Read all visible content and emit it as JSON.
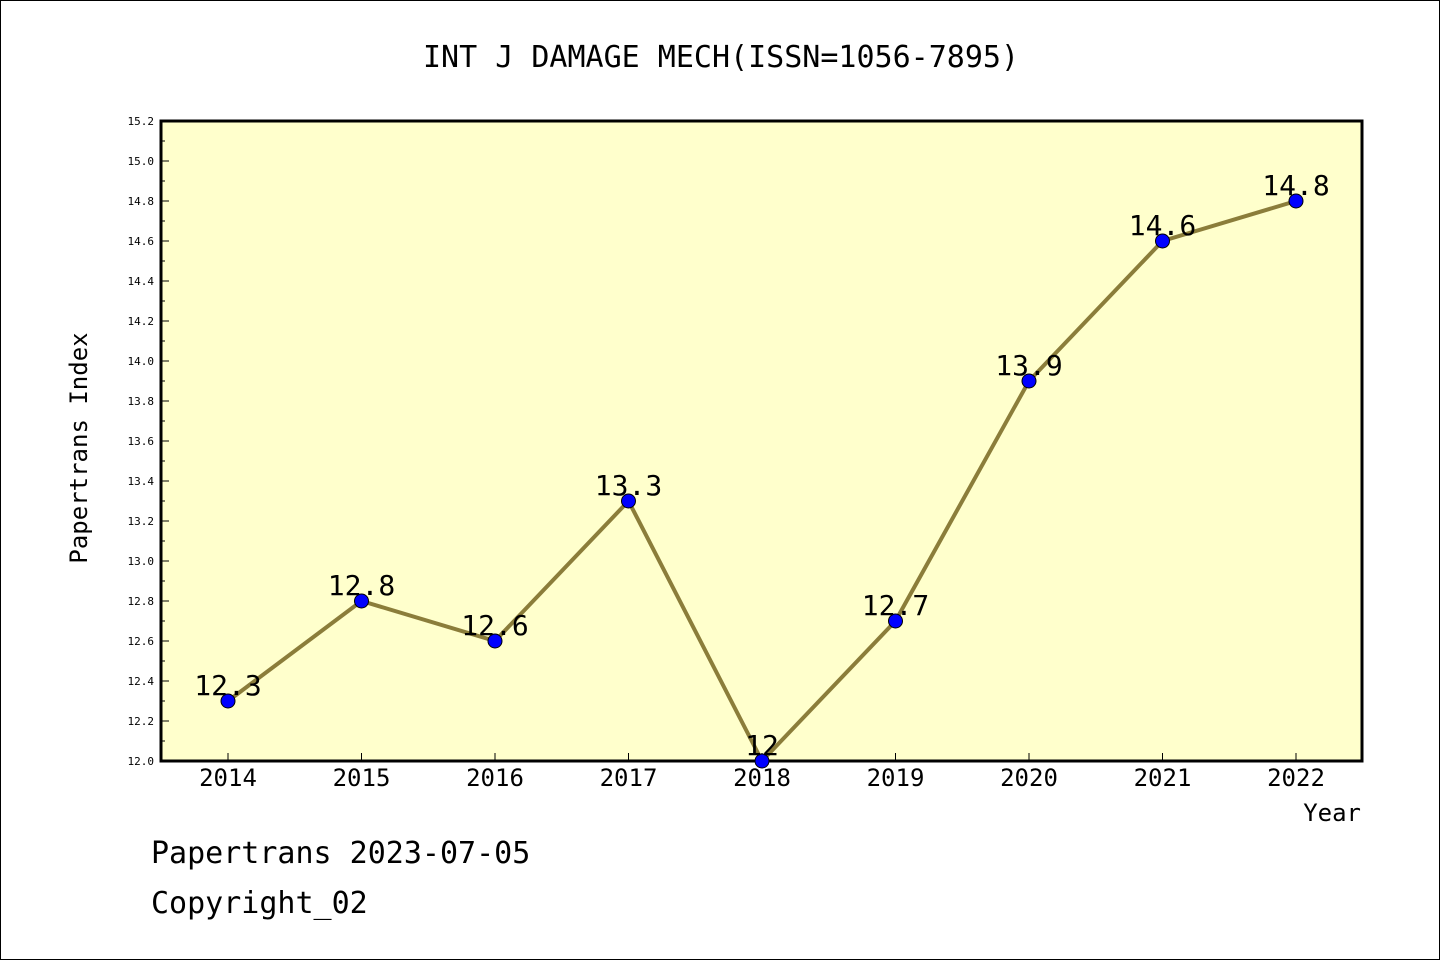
{
  "chart_data": {
    "type": "line",
    "title": "INT J DAMAGE MECH(ISSN=1056-7895)",
    "xlabel": "Year",
    "ylabel": "Papertrans Index",
    "categories": [
      "2014",
      "2015",
      "2016",
      "2017",
      "2018",
      "2019",
      "2020",
      "2021",
      "2022"
    ],
    "series": [
      {
        "values": [
          12.3,
          12.8,
          12.6,
          13.3,
          12.0,
          12.7,
          13.9,
          14.6,
          14.8
        ],
        "point_labels": [
          "12.3",
          "12.8",
          "12.6",
          "13.3",
          "12",
          "12.7",
          "13.9",
          "14.6",
          "14.8"
        ]
      }
    ],
    "ylim": [
      12.0,
      15.2
    ],
    "yticks": [
      "12.0",
      "12.2",
      "12.4",
      "12.6",
      "12.8",
      "13.0",
      "13.2",
      "13.4",
      "13.6",
      "13.8",
      "14.0",
      "14.2",
      "14.4",
      "14.6",
      "14.8",
      "15.0",
      "15.2"
    ],
    "grid": false,
    "colors": {
      "plot_background": "#ffffcc",
      "line": "#8b7d3a",
      "marker": "#0000ff"
    }
  },
  "footer": {
    "source": "Papertrans 2023-07-05",
    "copyright": "Copyright_02"
  }
}
